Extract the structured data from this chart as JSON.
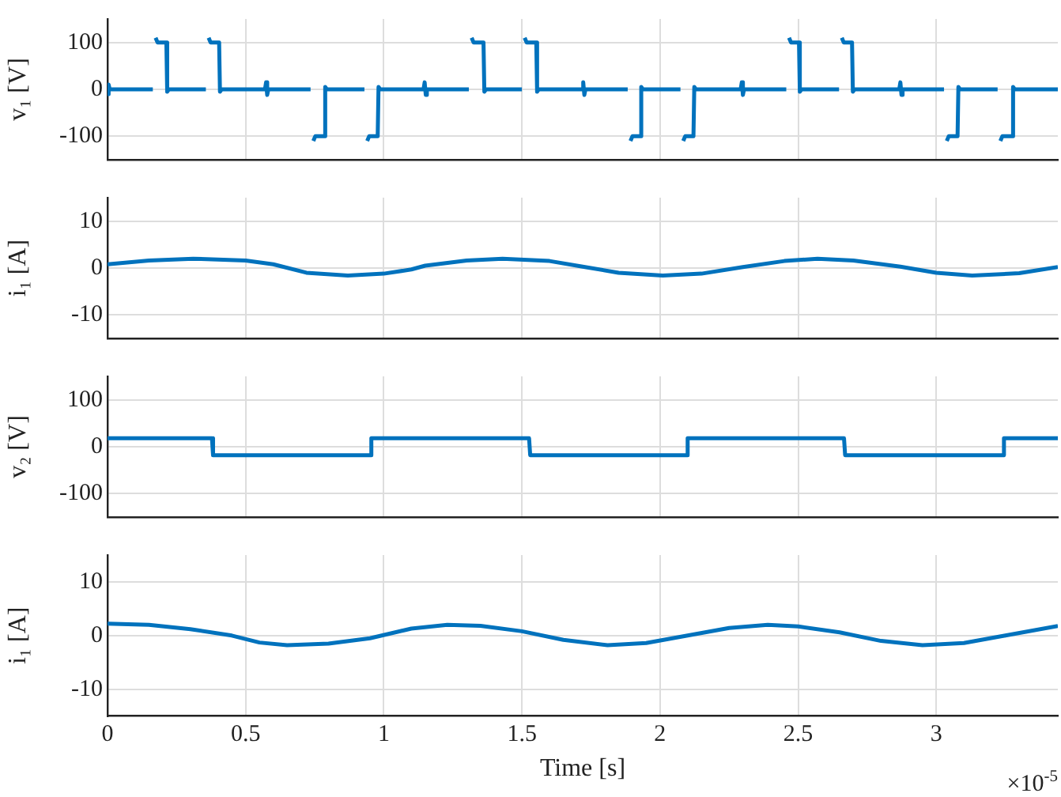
{
  "chart_data": [
    {
      "type": "line",
      "ylabel": "v₁ [V]",
      "xlim": [
        0,
        3.44
      ],
      "xticks": [
        0,
        0.5,
        1,
        1.5,
        2,
        2.5,
        3
      ],
      "ylim": [
        -150,
        150
      ],
      "yticks": [
        -100,
        0,
        100
      ],
      "grid": true,
      "tick_labels": "y",
      "series": [
        {
          "color": "#0072bd",
          "x": [
            0,
            0.004,
            0.008,
            0.164,
            0.166,
            0.174,
            0.181,
            0.213,
            0.216,
            0.222,
            0.356,
            0.358,
            0.366,
            0.373,
            0.404,
            0.407,
            0.413,
            0.57,
            0.574,
            0.578,
            0.582,
            0.735,
            0.737,
            0.745,
            0.752,
            0.785,
            0.788,
            0.794,
            0.93,
            0.932,
            0.94,
            0.947,
            0.978,
            0.981,
            0.987,
            1.144,
            1.148,
            1.152,
            1.156,
            1.308,
            1.31,
            1.318,
            1.325,
            1.361,
            1.364,
            1.37,
            1.5,
            1.502,
            1.51,
            1.517,
            1.552,
            1.555,
            1.561,
            1.718,
            1.722,
            1.726,
            1.73,
            1.883,
            1.885,
            1.893,
            1.9,
            1.929,
            1.932,
            1.938,
            2.074,
            2.076,
            2.084,
            2.091,
            2.121,
            2.124,
            2.13,
            2.292,
            2.296,
            2.3,
            2.304,
            2.457,
            2.459,
            2.467,
            2.474,
            2.503,
            2.506,
            2.512,
            2.648,
            2.65,
            2.658,
            2.665,
            2.695,
            2.698,
            2.704,
            2.866,
            2.87,
            2.874,
            2.878,
            3.028,
            3.03,
            3.038,
            3.045,
            3.077,
            3.08,
            3.086,
            3.222,
            3.224,
            3.232,
            3.239,
            3.275,
            3.278,
            3.284,
            3.44
          ],
          "values": [
            -10,
            10,
            0,
            0,
            null,
            110,
            100,
            100,
            -5,
            0,
            0,
            null,
            110,
            100,
            100,
            -5,
            0,
            0,
            15,
            -12,
            0,
            0,
            null,
            -110,
            -100,
            -100,
            5,
            0,
            0,
            null,
            -110,
            -100,
            -100,
            5,
            0,
            0,
            15,
            -12,
            0,
            0,
            null,
            110,
            100,
            100,
            -5,
            0,
            0,
            null,
            110,
            100,
            100,
            -5,
            0,
            0,
            15,
            -12,
            0,
            0,
            null,
            -110,
            -100,
            -100,
            5,
            0,
            0,
            null,
            -110,
            -100,
            -100,
            5,
            0,
            0,
            15,
            -12,
            0,
            0,
            null,
            110,
            100,
            100,
            -5,
            0,
            0,
            null,
            110,
            100,
            100,
            -5,
            0,
            0,
            15,
            -12,
            0,
            0,
            null,
            -110,
            -100,
            -100,
            5,
            0,
            0,
            null,
            -110,
            -100,
            -100,
            5,
            0,
            0
          ]
        }
      ]
    },
    {
      "type": "line",
      "ylabel": "i₁ [A]",
      "xlim": [
        0,
        3.44
      ],
      "xticks": [
        0,
        0.5,
        1,
        1.5,
        2,
        2.5,
        3
      ],
      "ylim": [
        -15,
        15
      ],
      "yticks": [
        -10,
        0,
        10
      ],
      "grid": true,
      "tick_labels": "y",
      "series": [
        {
          "color": "#0072bd",
          "x": [
            0,
            0.15,
            0.31,
            0.5,
            0.6,
            0.72,
            0.87,
            1.0,
            1.1,
            1.15,
            1.3,
            1.43,
            1.6,
            1.72,
            1.85,
            2.01,
            2.15,
            2.3,
            2.45,
            2.57,
            2.7,
            2.87,
            3.0,
            3.13,
            3.3,
            3.44
          ],
          "values": [
            0.8,
            1.6,
            2.0,
            1.6,
            0.8,
            -1.0,
            -1.6,
            -1.2,
            -0.3,
            0.5,
            1.6,
            2.0,
            1.5,
            0.3,
            -1.0,
            -1.6,
            -1.2,
            0.2,
            1.5,
            2.0,
            1.6,
            0.3,
            -1.0,
            -1.6,
            -1.1,
            0.2
          ]
        }
      ]
    },
    {
      "type": "line",
      "ylabel": "v₂ [V]",
      "xlim": [
        0,
        3.44
      ],
      "xticks": [
        0,
        0.5,
        1,
        1.5,
        2,
        2.5,
        3
      ],
      "ylim": [
        -150,
        150
      ],
      "yticks": [
        -100,
        0,
        100
      ],
      "grid": true,
      "tick_labels": "y",
      "series": [
        {
          "color": "#0072bd",
          "x": [
            0,
            0.378,
            0.382,
            0.951,
            0.955,
            1.526,
            1.53,
            2.096,
            2.1,
            2.666,
            2.67,
            3.241,
            3.245,
            3.44
          ],
          "values": [
            18,
            18,
            -18,
            -18,
            18,
            18,
            -18,
            -18,
            18,
            18,
            -18,
            -18,
            18,
            18
          ]
        }
      ]
    },
    {
      "type": "line",
      "ylabel": "i₁ [A]",
      "xlabel": "Time [s]",
      "annotations": [
        "×10$^{-5}$"
      ],
      "xlim": [
        0,
        3.44
      ],
      "xticks": [
        0,
        0.5,
        1,
        1.5,
        2,
        2.5,
        3
      ],
      "ylim": [
        -15,
        15
      ],
      "yticks": [
        -10,
        0,
        10
      ],
      "grid": true,
      "series": [
        {
          "color": "#0072bd",
          "x": [
            0,
            0.15,
            0.3,
            0.45,
            0.55,
            0.65,
            0.8,
            0.95,
            1.1,
            1.23,
            1.35,
            1.5,
            1.65,
            1.81,
            1.95,
            2.1,
            2.25,
            2.39,
            2.5,
            2.65,
            2.8,
            2.95,
            3.1,
            3.25,
            3.44
          ],
          "values": [
            2.2,
            2.0,
            1.2,
            0,
            -1.3,
            -1.8,
            -1.5,
            -0.5,
            1.3,
            2.0,
            1.8,
            0.8,
            -0.8,
            -1.8,
            -1.4,
            0.0,
            1.4,
            2.0,
            1.7,
            0.6,
            -1.0,
            -1.8,
            -1.4,
            0.0,
            1.8
          ]
        }
      ]
    }
  ]
}
